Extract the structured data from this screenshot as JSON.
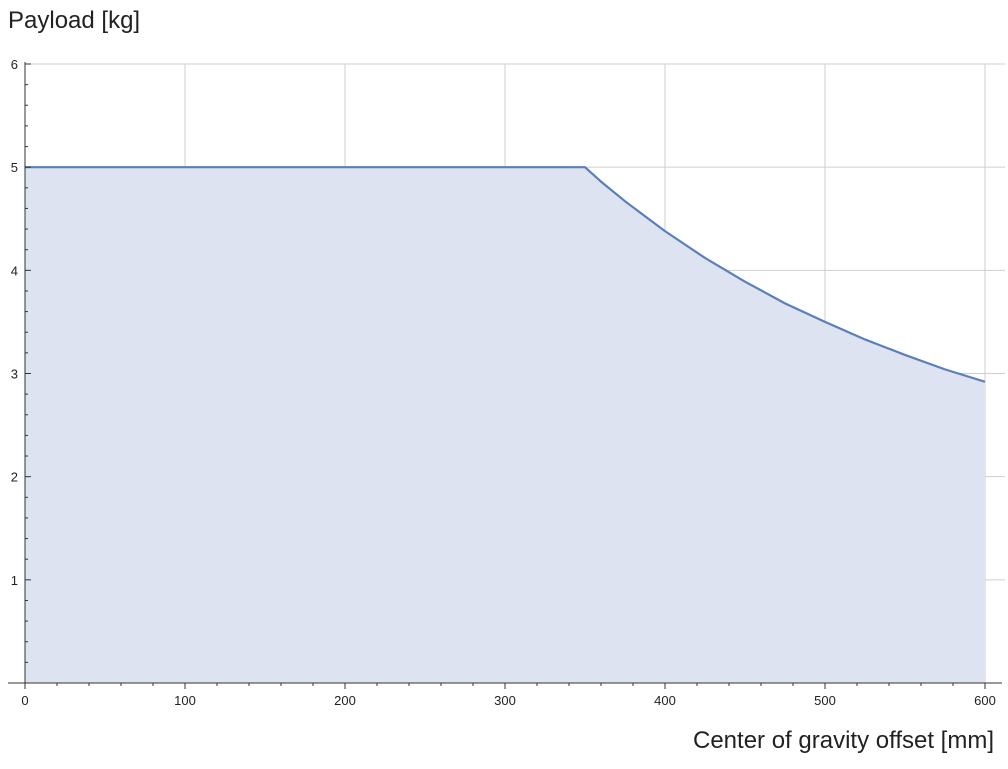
{
  "chart_data": {
    "type": "area",
    "xlabel": "Center of gravity offset [mm]",
    "ylabel": "Payload [kg]",
    "xlim": [
      0,
      600
    ],
    "ylim": [
      0,
      6
    ],
    "x_ticks": [
      0,
      100,
      200,
      300,
      400,
      500,
      600
    ],
    "y_ticks": [
      1,
      2,
      3,
      4,
      5,
      6
    ],
    "x_minor_step": 20,
    "y_minor_step": 0.2,
    "grid": true,
    "series": [
      {
        "x": [
          0,
          350,
          360,
          375,
          400,
          425,
          450,
          475,
          500,
          525,
          550,
          575,
          600
        ],
        "y": [
          5,
          5,
          4.86,
          4.67,
          4.38,
          4.12,
          3.89,
          3.68,
          3.5,
          3.33,
          3.18,
          3.04,
          2.92
        ],
        "fill": true
      }
    ],
    "colors": {
      "line": "#5a7fba",
      "fill": "#dde3f0"
    }
  }
}
